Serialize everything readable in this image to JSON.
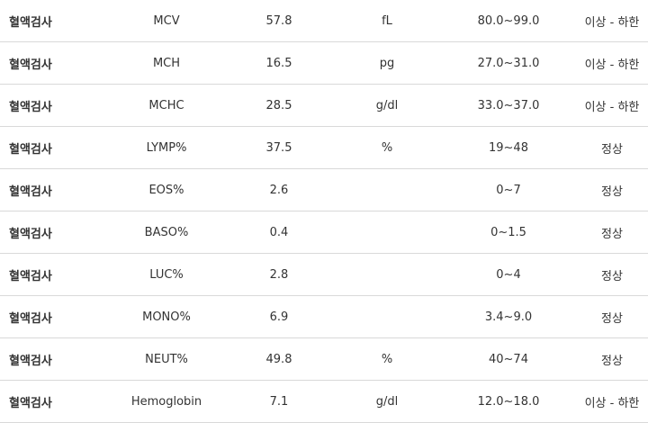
{
  "rows": [
    {
      "category": "혈액검사",
      "test": "MCV",
      "value": "57.8",
      "unit": "fL",
      "range": "80.0~99.0",
      "status": "이상 - 하한"
    },
    {
      "category": "혈액검사",
      "test": "MCH",
      "value": "16.5",
      "unit": "pg",
      "range": "27.0~31.0",
      "status": "이상 - 하한"
    },
    {
      "category": "혈액검사",
      "test": "MCHC",
      "value": "28.5",
      "unit": "g/dl",
      "range": "33.0~37.0",
      "status": "이상 - 하한"
    },
    {
      "category": "혈액검사",
      "test": "LYMP%",
      "value": "37.5",
      "unit": "%",
      "range": "19~48",
      "status": "정상"
    },
    {
      "category": "혈액검사",
      "test": "EOS%",
      "value": "2.6",
      "unit": "",
      "range": "0~7",
      "status": "정상"
    },
    {
      "category": "혈액검사",
      "test": "BASO%",
      "value": "0.4",
      "unit": "",
      "range": "0~1.5",
      "status": "정상"
    },
    {
      "category": "혈액검사",
      "test": "LUC%",
      "value": "2.8",
      "unit": "",
      "range": "0~4",
      "status": "정상"
    },
    {
      "category": "혈액검사",
      "test": "MONO%",
      "value": "6.9",
      "unit": "",
      "range": "3.4~9.0",
      "status": "정상"
    },
    {
      "category": "혈액검사",
      "test": "NEUT%",
      "value": "49.8",
      "unit": "%",
      "range": "40~74",
      "status": "정상"
    },
    {
      "category": "혈액검사",
      "test": "Hemoglobin",
      "value": "7.1",
      "unit": "g/dl",
      "range": "12.0~18.0",
      "status": "이상 - 하한"
    }
  ]
}
